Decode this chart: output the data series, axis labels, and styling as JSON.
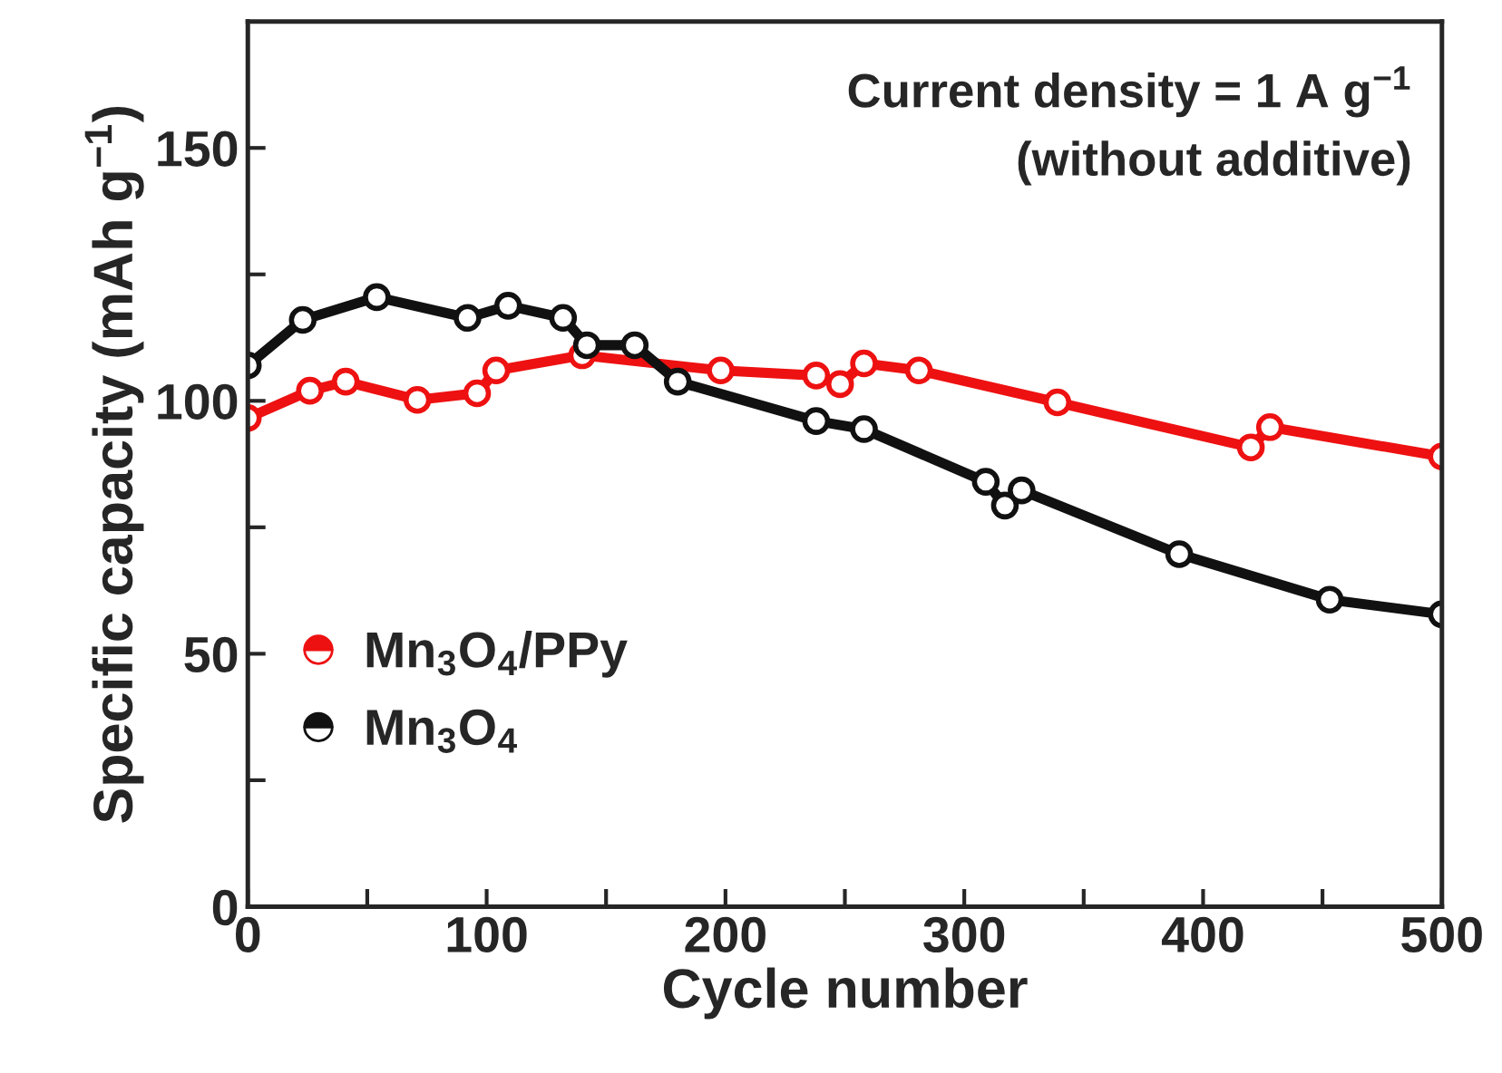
{
  "chart_data": {
    "type": "line",
    "xlabel": "Cycle number",
    "ylabel": "Specific capacity (mAh g$^{−1}$)",
    "annotations": [
      "Current density = 1 A g$^{−1}$",
      "(without additive)"
    ],
    "xlim": [
      0,
      500
    ],
    "ylim": [
      0,
      175
    ],
    "xticks": [
      0,
      {
        "value": 50,
        "label": null
      },
      100,
      {
        "value": 150,
        "label": null
      },
      200,
      {
        "value": 250,
        "label": null
      },
      300,
      {
        "value": 350,
        "label": null
      },
      400,
      {
        "value": 450,
        "label": null
      },
      500
    ],
    "yticks": [
      0,
      {
        "value": 25,
        "label": null
      },
      50,
      {
        "value": 75,
        "label": null
      },
      100,
      {
        "value": 125,
        "label": null
      },
      150
    ],
    "grid": false,
    "legend": "bottom left",
    "marker": "circle",
    "series": [
      {
        "name": "Mn$_{3}$O$_{4}$/PPy",
        "color": "#ee1111",
        "x": [
          0,
          26,
          41,
          71,
          96,
          104,
          140,
          198,
          238,
          248,
          258,
          281,
          339,
          420,
          428,
          500
        ],
        "values": [
          96.6,
          102,
          103.8,
          100.2,
          101.5,
          106,
          109,
          106,
          105,
          103.3,
          107.4,
          106,
          99.7,
          90.8,
          94.8,
          89
        ]
      },
      {
        "name": "Mn$_{3}$O$_{4}$",
        "color": "#111111",
        "x": [
          0,
          23,
          54,
          92,
          109,
          132,
          142,
          162,
          180,
          238,
          258,
          309,
          317,
          324,
          390,
          453,
          500
        ],
        "values": [
          107,
          116,
          120.5,
          116.4,
          118.8,
          116.4,
          111,
          111,
          103.8,
          96,
          94.4,
          84,
          79.3,
          82.3,
          69.7,
          60.7,
          57.8
        ]
      }
    ]
  }
}
